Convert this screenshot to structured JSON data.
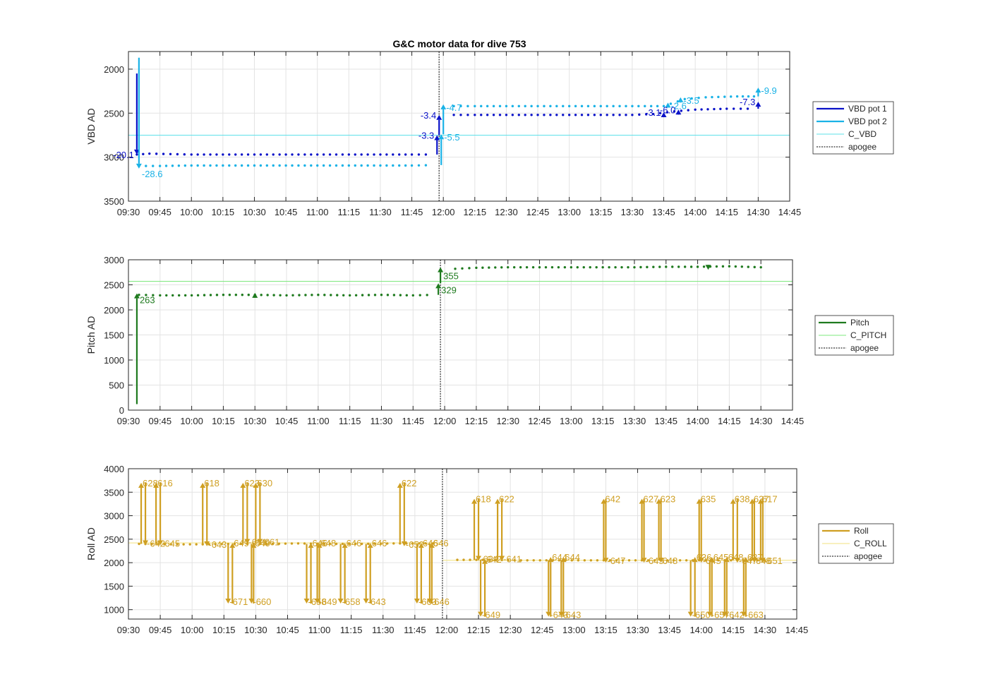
{
  "title": "G&C motor data for dive 753",
  "time_ticks": [
    "09:30",
    "09:45",
    "10:00",
    "10:15",
    "10:30",
    "10:45",
    "11:00",
    "11:15",
    "11:30",
    "11:45",
    "12:00",
    "12:15",
    "12:30",
    "12:45",
    "13:00",
    "13:15",
    "13:30",
    "13:45",
    "14:00",
    "14:15",
    "14:30",
    "14:45"
  ],
  "colors": {
    "vbd1": "#0a12c8",
    "vbd2": "#1ab2e6",
    "c_vbd": "#5ee0ea",
    "pitch": "#1e7a1e",
    "c_pitch": "#7ee87e",
    "roll": "#cf9f22",
    "c_roll": "#f2e27c",
    "apogee": "#555555"
  },
  "chart_data": [
    {
      "id": "vbd",
      "type": "line",
      "title": "G&C motor data for dive 753",
      "ylabel": "VBD AD",
      "xlabel": "",
      "ylim": [
        3500,
        1800
      ],
      "yticks": [
        2000,
        2500,
        3000,
        3500
      ],
      "xlim": [
        "09:30",
        "14:45"
      ],
      "grid": true,
      "legend": [
        "VBD pot 1",
        "VBD pot 2",
        "C_VBD",
        "apogee"
      ],
      "legend_position": "outside-right",
      "reference_lines": [
        {
          "name": "C_VBD",
          "y": 2750
        },
        {
          "name": "apogee",
          "x": "11:58"
        }
      ],
      "series": [
        {
          "name": "VBD pot 1",
          "x": [
            "09:34",
            "09:40",
            "09:50",
            "10:00",
            "10:15",
            "10:30",
            "10:45",
            "11:00",
            "11:15",
            "11:30",
            "11:45",
            "11:55",
            "12:05",
            "12:15",
            "12:30",
            "12:45",
            "13:00",
            "13:15",
            "13:30",
            "13:40",
            "13:50",
            "14:00",
            "14:15",
            "14:25"
          ],
          "values": [
            2970,
            2960,
            2965,
            2970,
            2970,
            2970,
            2970,
            2970,
            2970,
            2970,
            2970,
            2970,
            2520,
            2520,
            2520,
            2520,
            2520,
            2520,
            2520,
            2510,
            2480,
            2460,
            2450,
            2450
          ]
        },
        {
          "name": "VBD pot 2",
          "x": [
            "09:35",
            "09:45",
            "10:00",
            "10:15",
            "10:30",
            "10:45",
            "11:00",
            "11:15",
            "11:30",
            "11:45",
            "11:55",
            "12:05",
            "12:15",
            "12:30",
            "12:45",
            "13:00",
            "13:15",
            "13:30",
            "13:45",
            "13:55",
            "14:05",
            "14:20",
            "14:28"
          ],
          "values": [
            3100,
            3100,
            3095,
            3095,
            3095,
            3095,
            3095,
            3095,
            3095,
            3095,
            3090,
            2420,
            2420,
            2420,
            2420,
            2420,
            2420,
            2420,
            2420,
            2340,
            2320,
            2310,
            2310
          ]
        }
      ],
      "events": [
        {
          "series": "VBD pot 1",
          "x": "09:34",
          "y0": 2050,
          "y1": 2970,
          "label": "-20.1"
        },
        {
          "series": "VBD pot 2",
          "x": "09:35",
          "y0": 1870,
          "y1": 3130,
          "label": "-28.6"
        },
        {
          "series": "VBD pot 1",
          "x": "11:57",
          "y0": 2970,
          "y1": 2750,
          "label": "-3.3"
        },
        {
          "series": "VBD pot 1",
          "x": "11:58",
          "y0": 2750,
          "y1": 2520,
          "label": "-3.4"
        },
        {
          "series": "VBD pot 2",
          "x": "11:59",
          "y0": 3090,
          "y1": 2740,
          "label": "-5.5"
        },
        {
          "series": "VBD pot 2",
          "x": "12:00",
          "y0": 2740,
          "y1": 2400,
          "label": "-4.7"
        },
        {
          "series": "VBD pot 1",
          "x": "13:45",
          "y0": 2520,
          "y1": 2490,
          "label": "-3.1"
        },
        {
          "series": "VBD pot 2",
          "x": "13:47",
          "y0": 2420,
          "y1": 2380,
          "label": "-2.6"
        },
        {
          "series": "VBD pot 1",
          "x": "13:52",
          "y0": 2490,
          "y1": 2460,
          "label": "-6.0"
        },
        {
          "series": "VBD pot 2",
          "x": "13:53",
          "y0": 2380,
          "y1": 2320,
          "label": "-3.5"
        },
        {
          "series": "VBD pot 1",
          "x": "14:30",
          "y0": 2450,
          "y1": 2370,
          "label": "-7.3"
        },
        {
          "series": "VBD pot 2",
          "x": "14:30",
          "y0": 2310,
          "y1": 2210,
          "label": "-9.9"
        }
      ]
    },
    {
      "id": "pitch",
      "type": "line",
      "title": "",
      "ylabel": "Pitch AD",
      "xlabel": "",
      "ylim": [
        0,
        3000
      ],
      "yticks": [
        0,
        500,
        1000,
        1500,
        2000,
        2500,
        3000
      ],
      "xlim": [
        "09:30",
        "14:45"
      ],
      "grid": true,
      "legend": [
        "Pitch",
        "C_PITCH",
        "apogee"
      ],
      "legend_position": "outside-right",
      "reference_lines": [
        {
          "name": "C_PITCH",
          "y": 2570
        },
        {
          "name": "apogee",
          "x": "11:58"
        }
      ],
      "series": [
        {
          "name": "Pitch",
          "x": [
            "09:35",
            "09:45",
            "10:00",
            "10:15",
            "10:30",
            "10:45",
            "11:00",
            "11:15",
            "11:30",
            "11:45",
            "11:55",
            "12:05",
            "12:15",
            "12:30",
            "12:45",
            "13:00",
            "13:15",
            "13:30",
            "13:45",
            "14:00",
            "14:15",
            "14:30"
          ],
          "values": [
            2300,
            2290,
            2290,
            2300,
            2300,
            2290,
            2300,
            2290,
            2300,
            2290,
            2300,
            2820,
            2840,
            2850,
            2850,
            2850,
            2850,
            2850,
            2860,
            2860,
            2870,
            2850
          ]
        }
      ],
      "events": [
        {
          "series": "Pitch",
          "x": "09:34",
          "y0": 120,
          "y1": 2330,
          "label": "263"
        },
        {
          "series": "Pitch",
          "x": "10:30",
          "y0": 2290,
          "y1": 2340,
          "label": ""
        },
        {
          "series": "Pitch",
          "x": "11:57",
          "y0": 2300,
          "y1": 2530,
          "label": "329"
        },
        {
          "series": "Pitch",
          "x": "11:58",
          "y0": 2530,
          "y1": 2850,
          "label": "355"
        },
        {
          "series": "Pitch",
          "x": "14:05",
          "y0": 2880,
          "y1": 2800,
          "label": ""
        }
      ]
    },
    {
      "id": "roll",
      "type": "line",
      "title": "",
      "ylabel": "Roll AD",
      "xlabel": "",
      "ylim": [
        800,
        4000
      ],
      "yticks": [
        1000,
        1500,
        2000,
        2500,
        3000,
        3500,
        4000
      ],
      "xlim": [
        "09:30",
        "14:45"
      ],
      "grid": true,
      "legend": [
        "Roll",
        "C_ROLL",
        "apogee"
      ],
      "legend_position": "outside-right",
      "reference_lines": [
        {
          "name": "C_ROLL",
          "y": 2420,
          "x_end": "11:58"
        },
        {
          "name": "C_ROLL",
          "y": 2050,
          "x_start": "11:58"
        },
        {
          "name": "apogee",
          "x": "11:58"
        }
      ],
      "series": [
        {
          "name": "Roll",
          "x": [
            "09:35",
            "09:50",
            "10:05",
            "10:20",
            "10:35",
            "10:50",
            "11:05",
            "11:20",
            "11:35",
            "11:50",
            "11:57",
            "12:05",
            "12:20",
            "12:35",
            "12:50",
            "13:05",
            "13:20",
            "13:35",
            "13:50",
            "14:05",
            "14:20",
            "14:30"
          ],
          "values": [
            2400,
            2390,
            2390,
            2400,
            2400,
            2410,
            2400,
            2400,
            2410,
            2410,
            2410,
            2060,
            2060,
            2050,
            2050,
            2050,
            2050,
            2050,
            2050,
            2050,
            2050,
            2050
          ]
        }
      ],
      "events": [
        {
          "x": "09:36",
          "y0": 2400,
          "y1": 3700,
          "label": "628"
        },
        {
          "x": "09:38",
          "y0": 3700,
          "y1": 2370,
          "label": "-642"
        },
        {
          "x": "09:43",
          "y0": 2380,
          "y1": 3700,
          "label": "616"
        },
        {
          "x": "09:45",
          "y0": 3700,
          "y1": 2370,
          "label": "-645"
        },
        {
          "x": "10:05",
          "y0": 2390,
          "y1": 3700,
          "label": "618"
        },
        {
          "x": "10:07",
          "y0": 3700,
          "y1": 2350,
          "label": "-643"
        },
        {
          "x": "10:17",
          "y0": 2400,
          "y1": 1130,
          "label": "-671"
        },
        {
          "x": "10:19",
          "y0": 1130,
          "y1": 2420,
          "label": "649"
        },
        {
          "x": "10:24",
          "y0": 2400,
          "y1": 3700,
          "label": "623"
        },
        {
          "x": "10:26",
          "y0": 3700,
          "y1": 2400,
          "label": "-651"
        },
        {
          "x": "10:28",
          "y0": 2400,
          "y1": 1130,
          "label": "-660"
        },
        {
          "x": "10:29",
          "y0": 1130,
          "y1": 2420,
          "label": "649"
        },
        {
          "x": "10:30",
          "y0": 2400,
          "y1": 3700,
          "label": "630"
        },
        {
          "x": "10:32",
          "y0": 3700,
          "y1": 2400,
          "label": "-661"
        },
        {
          "x": "10:54",
          "y0": 2400,
          "y1": 1130,
          "label": "-658"
        },
        {
          "x": "10:56",
          "y0": 1130,
          "y1": 2420,
          "label": "646"
        },
        {
          "x": "10:59",
          "y0": 2400,
          "y1": 1130,
          "label": "-649"
        },
        {
          "x": "11:00",
          "y0": 1130,
          "y1": 2420,
          "label": "648"
        },
        {
          "x": "11:10",
          "y0": 2400,
          "y1": 1130,
          "label": "-658"
        },
        {
          "x": "11:12",
          "y0": 1130,
          "y1": 2420,
          "label": "646"
        },
        {
          "x": "11:22",
          "y0": 2400,
          "y1": 1130,
          "label": "-643"
        },
        {
          "x": "11:24",
          "y0": 1130,
          "y1": 2420,
          "label": "646"
        },
        {
          "x": "11:38",
          "y0": 2410,
          "y1": 3700,
          "label": "622"
        },
        {
          "x": "11:40",
          "y0": 3700,
          "y1": 2350,
          "label": "-652"
        },
        {
          "x": "11:46",
          "y0": 2410,
          "y1": 1130,
          "label": "-663"
        },
        {
          "x": "11:48",
          "y0": 1130,
          "y1": 2420,
          "label": "646"
        },
        {
          "x": "11:52",
          "y0": 2410,
          "y1": 1130,
          "label": "-646"
        },
        {
          "x": "11:53",
          "y0": 1130,
          "y1": 2420,
          "label": "646"
        },
        {
          "x": "12:13",
          "y0": 2060,
          "y1": 3360,
          "label": "618"
        },
        {
          "x": "12:15",
          "y0": 3360,
          "y1": 2040,
          "label": "-634"
        },
        {
          "x": "12:16",
          "y0": 2060,
          "y1": 850,
          "label": "-649"
        },
        {
          "x": "12:18",
          "y0": 850,
          "y1": 2080,
          "label": "642"
        },
        {
          "x": "12:24",
          "y0": 2060,
          "y1": 3360,
          "label": "622"
        },
        {
          "x": "12:26",
          "y0": 3360,
          "y1": 2040,
          "label": "-641"
        },
        {
          "x": "12:48",
          "y0": 2050,
          "y1": 850,
          "label": "-643"
        },
        {
          "x": "12:49",
          "y0": 850,
          "y1": 2120,
          "label": "644"
        },
        {
          "x": "12:54",
          "y0": 2050,
          "y1": 850,
          "label": "-643"
        },
        {
          "x": "12:55",
          "y0": 850,
          "y1": 2120,
          "label": "644"
        },
        {
          "x": "13:14",
          "y0": 2050,
          "y1": 3360,
          "label": "642"
        },
        {
          "x": "13:15",
          "y0": 3360,
          "y1": 2000,
          "label": "-647"
        },
        {
          "x": "13:32",
          "y0": 2050,
          "y1": 3360,
          "label": "627"
        },
        {
          "x": "13:33",
          "y0": 3360,
          "y1": 2000,
          "label": "-645"
        },
        {
          "x": "13:40",
          "y0": 2050,
          "y1": 3360,
          "label": "623"
        },
        {
          "x": "13:41",
          "y0": 3360,
          "y1": 2000,
          "label": "648"
        },
        {
          "x": "13:55",
          "y0": 2050,
          "y1": 850,
          "label": "-650"
        },
        {
          "x": "13:57",
          "y0": 850,
          "y1": 2120,
          "label": "636"
        },
        {
          "x": "13:59",
          "y0": 2050,
          "y1": 3360,
          "label": "635"
        },
        {
          "x": "14:00",
          "y0": 3360,
          "y1": 2000,
          "label": "-645"
        },
        {
          "x": "14:04",
          "y0": 2050,
          "y1": 850,
          "label": "-657"
        },
        {
          "x": "14:05",
          "y0": 850,
          "y1": 2120,
          "label": "645"
        },
        {
          "x": "14:11",
          "y0": 2050,
          "y1": 850,
          "label": "-642"
        },
        {
          "x": "14:12",
          "y0": 850,
          "y1": 2120,
          "label": "648"
        },
        {
          "x": "14:15",
          "y0": 2050,
          "y1": 3360,
          "label": "638"
        },
        {
          "x": "14:17",
          "y0": 3360,
          "y1": 2000,
          "label": "-647"
        },
        {
          "x": "14:20",
          "y0": 2050,
          "y1": 850,
          "label": "-663"
        },
        {
          "x": "14:21",
          "y0": 850,
          "y1": 2120,
          "label": "637"
        },
        {
          "x": "14:24",
          "y0": 2050,
          "y1": 3360,
          "label": "637"
        },
        {
          "x": "14:25",
          "y0": 3360,
          "y1": 2000,
          "label": "648"
        },
        {
          "x": "14:28",
          "y0": 2050,
          "y1": 3360,
          "label": "617"
        },
        {
          "x": "14:29",
          "y0": 3360,
          "y1": 2000,
          "label": "-651"
        }
      ]
    }
  ]
}
